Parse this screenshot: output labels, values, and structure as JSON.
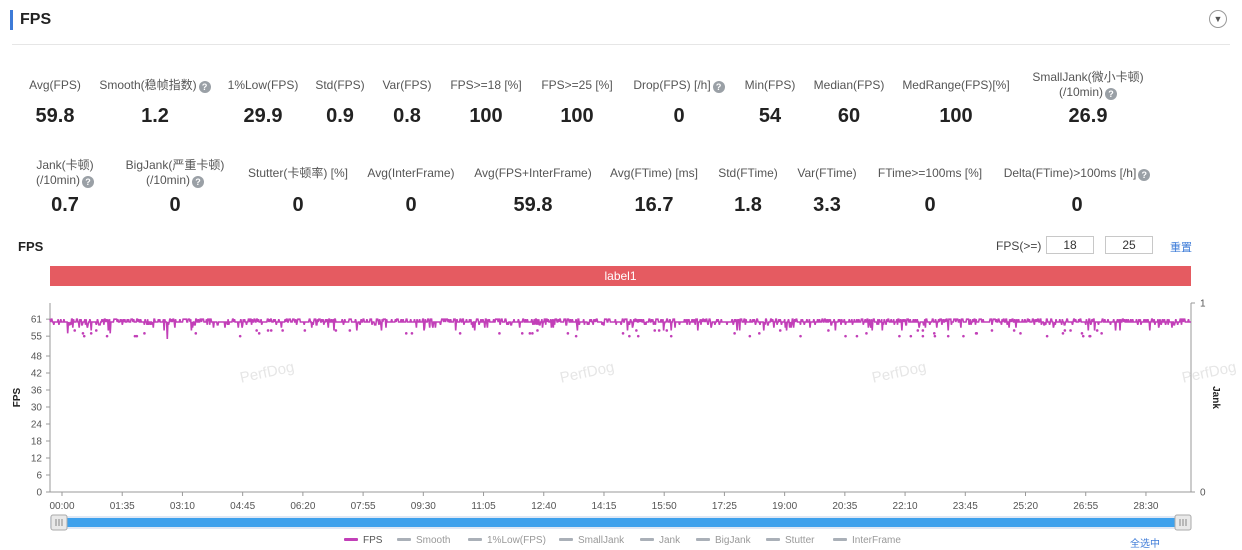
{
  "header": {
    "title": "FPS"
  },
  "stats_row1": [
    {
      "label": "Avg(FPS)",
      "value": "59.8",
      "help": false
    },
    {
      "label": "Smooth(稳帧指数)",
      "value": "1.2",
      "help": true
    },
    {
      "label": "1%Low(FPS)",
      "value": "29.9",
      "help": false
    },
    {
      "label": "Std(FPS)",
      "value": "0.9",
      "help": false
    },
    {
      "label": "Var(FPS)",
      "value": "0.8",
      "help": false
    },
    {
      "label": "FPS>=18 [%]",
      "value": "100",
      "help": false
    },
    {
      "label": "FPS>=25 [%]",
      "value": "100",
      "help": false
    },
    {
      "label": "Drop(FPS) [/h]",
      "value": "0",
      "help": true
    },
    {
      "label": "Min(FPS)",
      "value": "54",
      "help": false
    },
    {
      "label": "Median(FPS)",
      "value": "60",
      "help": false
    },
    {
      "label": "MedRange(FPS)[%]",
      "value": "100",
      "help": false
    },
    {
      "label": "SmallJank(微小卡顿)",
      "label2": "(/10min)",
      "value": "26.9",
      "help": true
    }
  ],
  "stats_row2": [
    {
      "label": "Jank(卡顿)",
      "label2": "(/10min)",
      "value": "0.7",
      "help": true
    },
    {
      "label": "BigJank(严重卡顿)",
      "label2": "(/10min)",
      "value": "0",
      "help": true
    },
    {
      "label": "Stutter(卡顿率) [%]",
      "value": "0",
      "help": false
    },
    {
      "label": "Avg(InterFrame)",
      "value": "0",
      "help": false
    },
    {
      "label": "Avg(FPS+InterFrame)",
      "value": "59.8",
      "help": false
    },
    {
      "label": "Avg(FTime) [ms]",
      "value": "16.7",
      "help": false
    },
    {
      "label": "Std(FTime)",
      "value": "1.8",
      "help": false
    },
    {
      "label": "Var(FTime)",
      "value": "3.3",
      "help": false
    },
    {
      "label": "FTime>=100ms [%]",
      "value": "0",
      "help": false
    },
    {
      "label": "Delta(FTime)>100ms [/h]",
      "value": "0",
      "help": true
    }
  ],
  "chart_header": {
    "title": "FPS",
    "threshold_label": "FPS(>=)",
    "threshold1": "18",
    "threshold2": "25",
    "reset_label": "重置",
    "label_bar": "label1"
  },
  "watermark": "PerfDog",
  "chart_data": {
    "type": "line",
    "ylabel": "FPS",
    "y2label": "Jank",
    "y_ticks": [
      0,
      6,
      12,
      18,
      24,
      30,
      36,
      42,
      48,
      55,
      61
    ],
    "y2_ticks": [
      0,
      1
    ],
    "x_ticks": [
      "00:00",
      "01:35",
      "03:10",
      "04:45",
      "06:20",
      "07:55",
      "09:30",
      "11:05",
      "12:40",
      "14:15",
      "15:50",
      "17:25",
      "19:00",
      "20:35",
      "22:10",
      "23:45",
      "25:20",
      "26:55",
      "28:30"
    ],
    "x_range_seconds": [
      0,
      1800
    ],
    "series": [
      {
        "name": "FPS",
        "color": "#c23fb8",
        "baseline": 60,
        "min": 54,
        "max": 61,
        "avg": 59.8
      }
    ],
    "grid": false,
    "legend_position": "bottom"
  },
  "legend": [
    {
      "name": "FPS",
      "color": "#c23fb8",
      "active": true
    },
    {
      "name": "Smooth",
      "color": "#aab0b8",
      "active": false
    },
    {
      "name": "1%Low(FPS)",
      "color": "#aab0b8",
      "active": false
    },
    {
      "name": "SmallJank",
      "color": "#aab0b8",
      "active": false
    },
    {
      "name": "Jank",
      "color": "#aab0b8",
      "active": false
    },
    {
      "name": "BigJank",
      "color": "#aab0b8",
      "active": false
    },
    {
      "name": "Stutter",
      "color": "#aab0b8",
      "active": false
    },
    {
      "name": "InterFrame",
      "color": "#aab0b8",
      "active": false
    }
  ],
  "select_all_label": "全选中"
}
